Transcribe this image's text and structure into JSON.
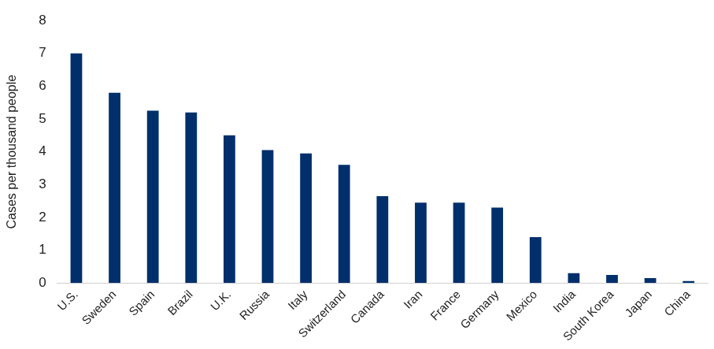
{
  "chart_data": {
    "type": "bar",
    "y_label": "Cases per thousand people",
    "categories": [
      "U.S.",
      "Sweden",
      "Spain",
      "Brazil",
      "U.K.",
      "Russia",
      "Italy",
      "Switzerland",
      "Canada",
      "Iran",
      "France",
      "Germany",
      "Mexico",
      "India",
      "South Korea",
      "Japan",
      "China"
    ],
    "values": [
      7.0,
      5.8,
      5.25,
      5.2,
      4.5,
      4.05,
      3.95,
      3.6,
      2.65,
      2.45,
      2.45,
      2.3,
      1.4,
      0.3,
      0.25,
      0.15,
      0.06
    ],
    "color": "#002f6c",
    "ylim": [
      0,
      8
    ],
    "yticks": [
      0,
      1,
      2,
      3,
      4,
      5,
      6,
      7,
      8
    ],
    "grid": false
  }
}
